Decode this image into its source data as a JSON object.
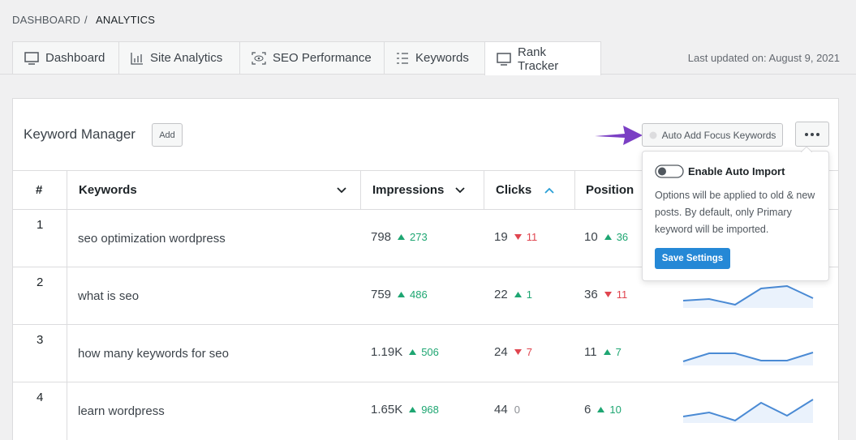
{
  "breadcrumb": {
    "items": [
      "DASHBOARD",
      "ANALYTICS"
    ],
    "separator": "/"
  },
  "tabs": [
    {
      "label": "Dashboard"
    },
    {
      "label": "Site Analytics"
    },
    {
      "label": "SEO Performance"
    },
    {
      "label": "Keywords"
    },
    {
      "label": "Rank Tracker",
      "active": true
    }
  ],
  "last_updated": "Last updated on: August 9, 2021",
  "keyword_manager": {
    "title": "Keyword Manager",
    "add_button": "Add",
    "auto_add_button": "Auto Add Focus Keywords"
  },
  "popup": {
    "toggle_label": "Enable Auto Import",
    "description": "Options will be applied to old & new posts. By default, only Primary keyword will be imported.",
    "save_button": "Save Settings"
  },
  "table": {
    "headers": [
      "#",
      "Keywords",
      "Impressions",
      "Clicks",
      "Position"
    ],
    "trend_ylim": [
      0,
      30
    ],
    "rows": [
      {
        "rank": "1",
        "keyword": "seo optimization wordpress",
        "impressions": {
          "value": "798",
          "change": "273",
          "direction": "up"
        },
        "clicks": {
          "value": "19",
          "change": "11",
          "direction": "down"
        },
        "position": {
          "value": "10",
          "change": "36",
          "direction": "up"
        }
      },
      {
        "rank": "2",
        "keyword": "what is seo",
        "impressions": {
          "value": "759",
          "change": "486",
          "direction": "up"
        },
        "clicks": {
          "value": "22",
          "change": "1",
          "direction": "up"
        },
        "position": {
          "value": "36",
          "change": "11",
          "direction": "down"
        },
        "trend": [
          8,
          10,
          3,
          23,
          26,
          11
        ]
      },
      {
        "rank": "3",
        "keyword": "how many keywords for seo",
        "impressions": {
          "value": "1.19K",
          "change": "506",
          "direction": "up"
        },
        "clicks": {
          "value": "24",
          "change": "7",
          "direction": "down"
        },
        "position": {
          "value": "11",
          "change": "7",
          "direction": "up"
        },
        "trend": [
          4,
          14,
          14,
          5,
          5,
          15
        ]
      },
      {
        "rank": "4",
        "keyword": "learn wordpress",
        "impressions": {
          "value": "1.65K",
          "change": "968",
          "direction": "up"
        },
        "clicks": {
          "value": "44",
          "change": "0",
          "direction": "flat"
        },
        "position": {
          "value": "6",
          "change": "10",
          "direction": "up"
        },
        "trend": [
          7,
          12,
          2,
          24,
          8,
          28
        ]
      }
    ]
  }
}
